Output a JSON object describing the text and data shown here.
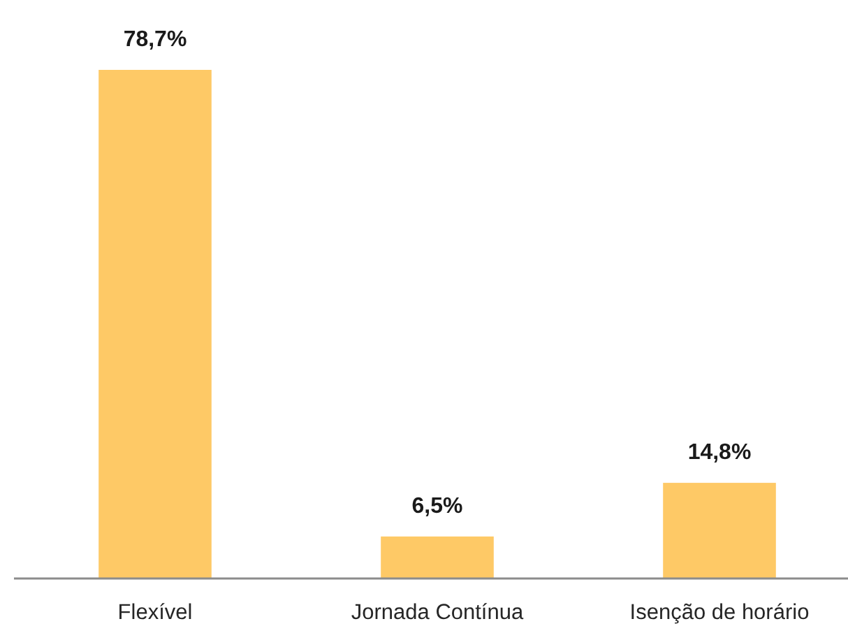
{
  "chart_data": {
    "type": "bar",
    "categories": [
      "Flexível",
      "Jornada Contínua",
      "Isenção de horário"
    ],
    "values": [
      78.7,
      6.5,
      14.8
    ],
    "value_labels": [
      "78,7%",
      "6,5%",
      "14,8%"
    ],
    "color": "#fec966"
  }
}
